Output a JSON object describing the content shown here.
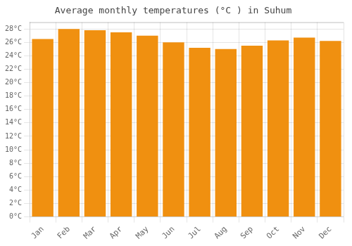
{
  "chart_data": {
    "type": "bar",
    "title": "Average monthly temperatures (°C ) in Suhum",
    "categories": [
      "Jan",
      "Feb",
      "Mar",
      "Apr",
      "May",
      "Jun",
      "Jul",
      "Aug",
      "Sep",
      "Oct",
      "Nov",
      "Dec"
    ],
    "values": [
      26.5,
      28.0,
      27.8,
      27.5,
      27.0,
      26.0,
      25.2,
      25.0,
      25.5,
      26.3,
      26.7,
      26.2
    ],
    "color": "#F09010",
    "ylim": [
      0,
      29
    ],
    "yticks": [
      {
        "value": 0,
        "label": "0°C"
      },
      {
        "value": 2,
        "label": "2°C"
      },
      {
        "value": 4,
        "label": "4°C"
      },
      {
        "value": 6,
        "label": "6°C"
      },
      {
        "value": 8,
        "label": "8°C"
      },
      {
        "value": 10,
        "label": "10°C"
      },
      {
        "value": 12,
        "label": "12°C"
      },
      {
        "value": 14,
        "label": "14°C"
      },
      {
        "value": 16,
        "label": "16°C"
      },
      {
        "value": 18,
        "label": "18°C"
      },
      {
        "value": 20,
        "label": "20°C"
      },
      {
        "value": 22,
        "label": "22°C"
      },
      {
        "value": 24,
        "label": "24°C"
      },
      {
        "value": 26,
        "label": "26°C"
      },
      {
        "value": 28,
        "label": "28°C"
      }
    ],
    "grid": true
  }
}
